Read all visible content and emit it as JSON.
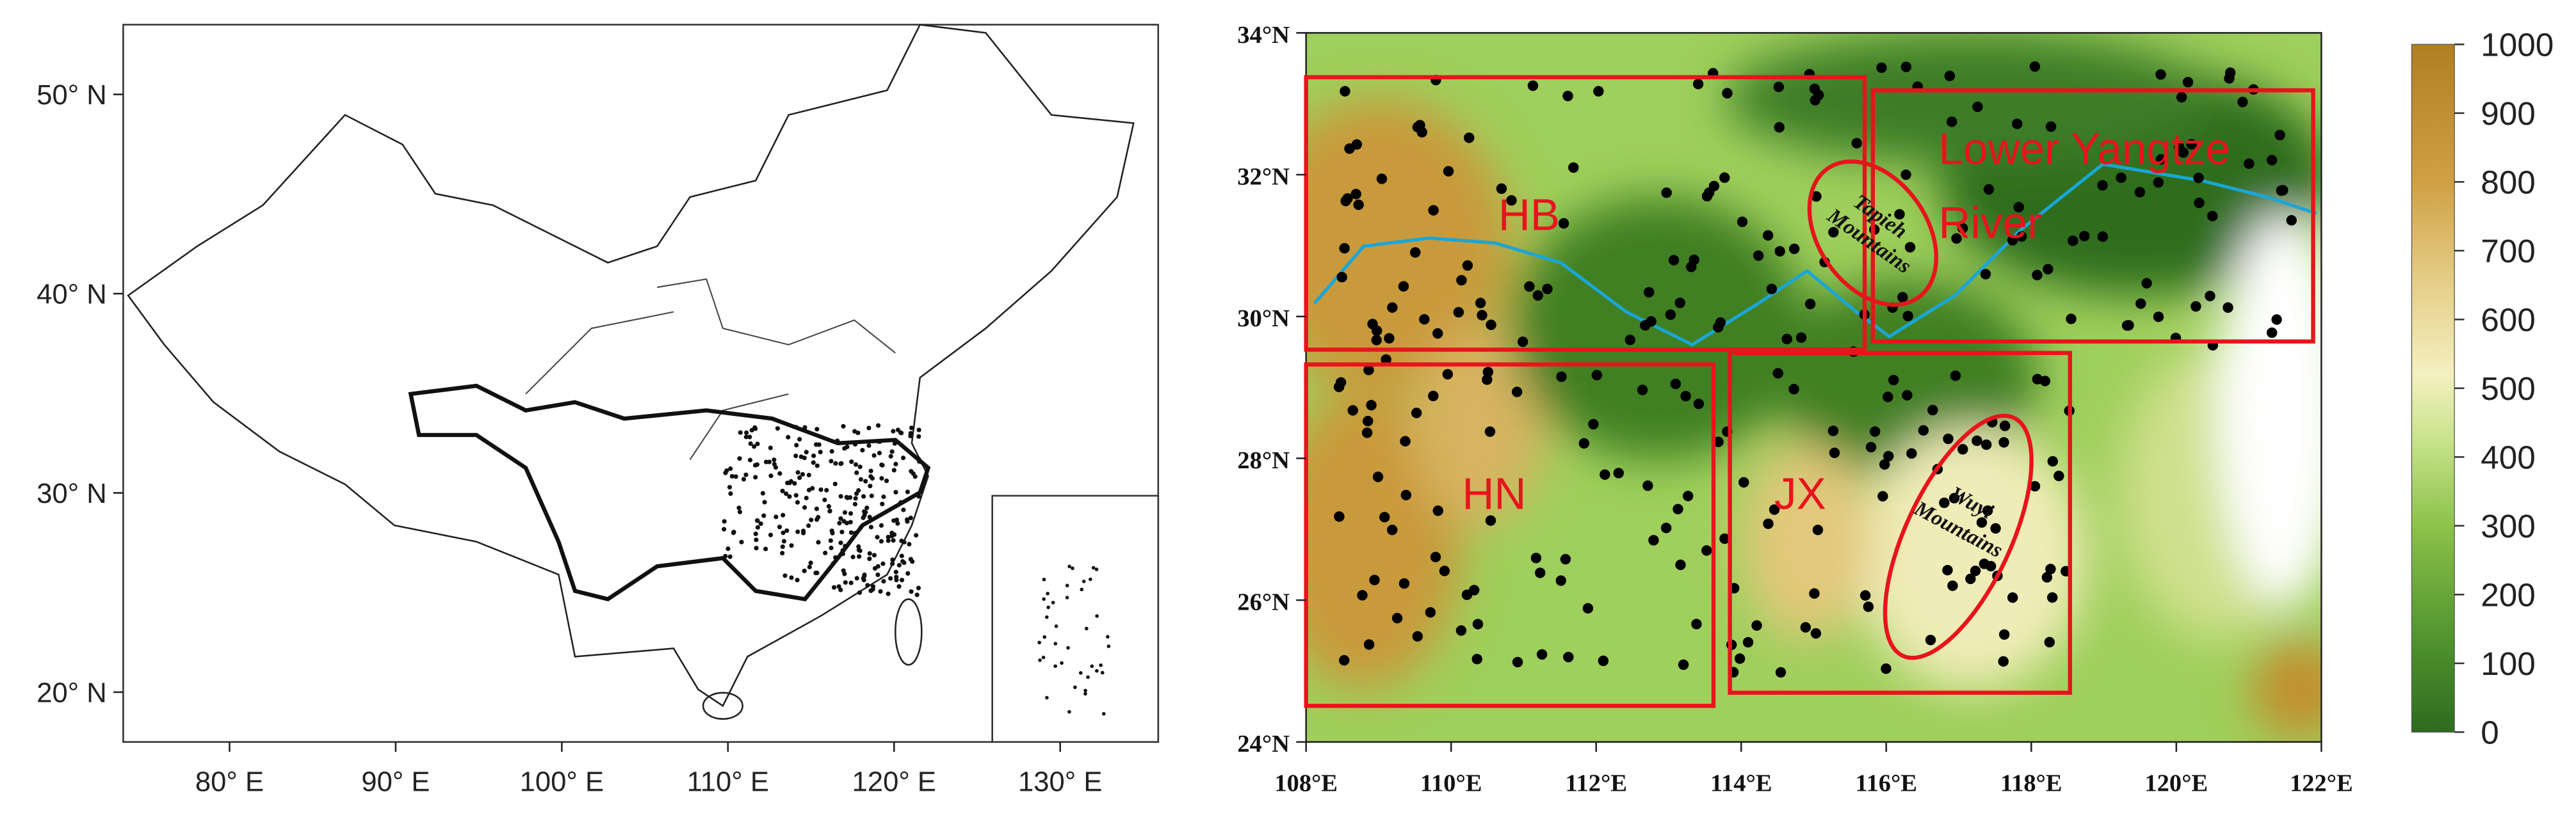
{
  "left_map": {
    "xlim": [
      73.6,
      135.9
    ],
    "ylim": [
      17.5,
      53.5
    ],
    "xticks": [
      {
        "value": 80,
        "label": "80° E"
      },
      {
        "value": 90,
        "label": "90° E"
      },
      {
        "value": 100,
        "label": "100° E"
      },
      {
        "value": 110,
        "label": "110° E"
      },
      {
        "value": 120,
        "label": "120° E"
      },
      {
        "value": 130,
        "label": "130° E"
      }
    ],
    "yticks": [
      {
        "value": 20,
        "label": "20° N"
      },
      {
        "value": 30,
        "label": "30° N"
      },
      {
        "value": 40,
        "label": "40° N"
      },
      {
        "value": 50,
        "label": "50° N"
      }
    ]
  },
  "right_map": {
    "xlim": [
      108,
      122
    ],
    "ylim": [
      24,
      34
    ],
    "xticks": [
      {
        "value": 108,
        "label": "108°E"
      },
      {
        "value": 110,
        "label": "110°E"
      },
      {
        "value": 112,
        "label": "112°E"
      },
      {
        "value": 114,
        "label": "114°E"
      },
      {
        "value": 116,
        "label": "116°E"
      },
      {
        "value": 118,
        "label": "118°E"
      },
      {
        "value": 120,
        "label": "120°E"
      },
      {
        "value": 122,
        "label": "122°E"
      }
    ],
    "yticks": [
      {
        "value": 24,
        "label": "24°N"
      },
      {
        "value": 26,
        "label": "26°N"
      },
      {
        "value": 28,
        "label": "28°N"
      },
      {
        "value": 30,
        "label": "30°N"
      },
      {
        "value": 32,
        "label": "32°N"
      },
      {
        "value": 34,
        "label": "34°N"
      }
    ],
    "regions": {
      "hb": "HB",
      "hn": "HN",
      "jx": "JX",
      "lower_yangtze": [
        "Lower Yangtze",
        "River"
      ]
    },
    "mountains": {
      "tapieh": [
        "Tapieh",
        "Mountains"
      ],
      "wuyi": [
        "Wuyi",
        "Mountains"
      ]
    }
  },
  "colorbar": {
    "lim": [
      0,
      1000
    ],
    "ticks": [
      0,
      100,
      200,
      300,
      400,
      500,
      600,
      700,
      800,
      900,
      1000
    ]
  }
}
